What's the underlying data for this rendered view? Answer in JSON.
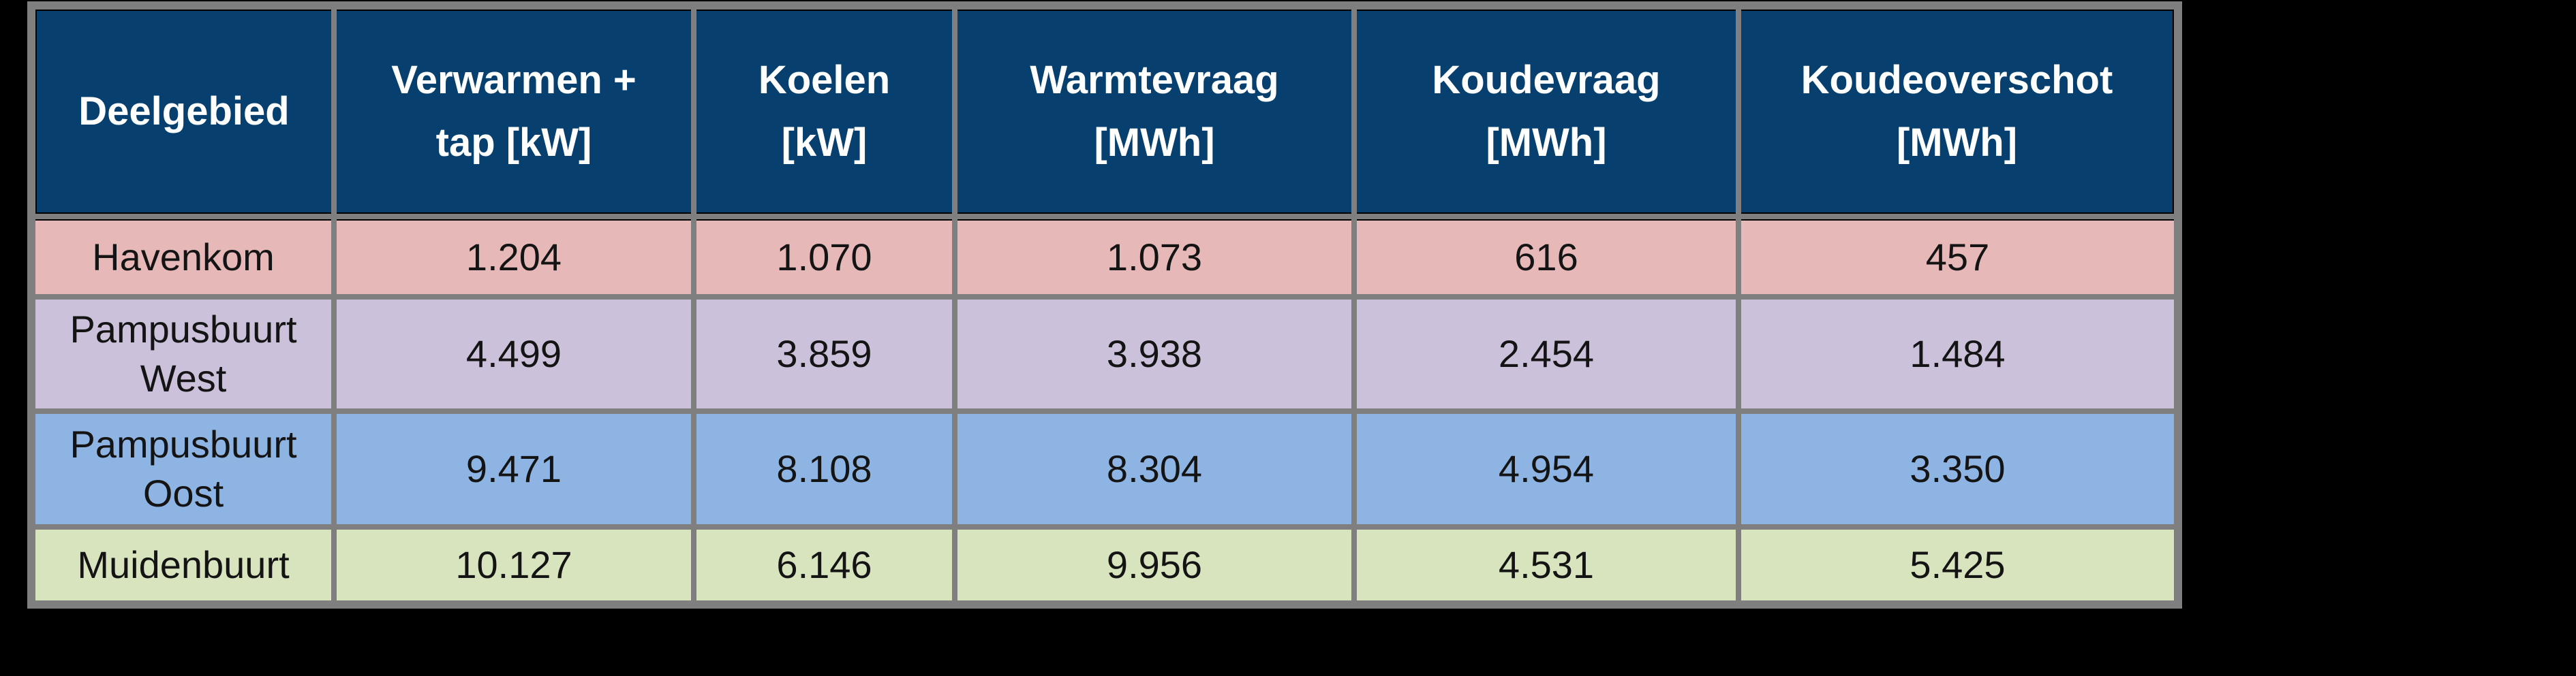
{
  "colors": {
    "canvas_background": "#000000",
    "frame_gray": "#7f7f7f",
    "header_background": "#07406f",
    "header_text": "#ffffff",
    "body_text": "#141414",
    "row_colors": [
      "#e6b9b8",
      "#ccc1da",
      "#8eb4e3",
      "#d7e4bd"
    ]
  },
  "table": {
    "columns": [
      {
        "line1": "Deelgebied",
        "line2": ""
      },
      {
        "line1": "Verwarmen +",
        "line2": "tap [kW]"
      },
      {
        "line1": "Koelen",
        "line2": "[kW]"
      },
      {
        "line1": "Warmtevraag",
        "line2": "[MWh]"
      },
      {
        "line1": "Koudevraag",
        "line2": "[MWh]"
      },
      {
        "line1": "Koudeoverschot",
        "line2": "[MWh]"
      }
    ],
    "rows": [
      {
        "name": "Havenkom",
        "color": "#e6b9b8",
        "values": [
          "1.204",
          "1.070",
          "1.073",
          "616",
          "457"
        ]
      },
      {
        "name": "Pampusbuurt West",
        "color": "#ccc1da",
        "values": [
          "4.499",
          "3.859",
          "3.938",
          "2.454",
          "1.484"
        ]
      },
      {
        "name": "Pampusbuurt Oost",
        "color": "#8eb4e3",
        "values": [
          "9.471",
          "8.108",
          "8.304",
          "4.954",
          "3.350"
        ]
      },
      {
        "name": "Muidenbuurt",
        "color": "#d7e4bd",
        "values": [
          "10.127",
          "6.146",
          "9.956",
          "4.531",
          "5.425"
        ]
      }
    ]
  },
  "chart_data": {
    "type": "table",
    "title": "",
    "columns": [
      "Deelgebied",
      "Verwarmen + tap [kW]",
      "Koelen [kW]",
      "Warmtevraag [MWh]",
      "Koudevraag [MWh]",
      "Koudeoverschot [MWh]"
    ],
    "rows": [
      {
        "Deelgebied": "Havenkom",
        "Verwarmen + tap [kW]": 1204,
        "Koelen [kW]": 1070,
        "Warmtevraag [MWh]": 1073,
        "Koudevraag [MWh]": 616,
        "Koudeoverschot [MWh]": 457
      },
      {
        "Deelgebied": "Pampusbuurt West",
        "Verwarmen + tap [kW]": 4499,
        "Koelen [kW]": 3859,
        "Warmtevraag [MWh]": 3938,
        "Koudevraag [MWh]": 2454,
        "Koudeoverschot [MWh]": 1484
      },
      {
        "Deelgebied": "Pampusbuurt Oost",
        "Verwarmen + tap [kW]": 9471,
        "Koelen [kW]": 8108,
        "Warmtevraag [MWh]": 8304,
        "Koudevraag [MWh]": 4954,
        "Koudeoverschot [MWh]": 3350
      },
      {
        "Deelgebied": "Muidenbuurt",
        "Verwarmen + tap [kW]": 10127,
        "Koelen [kW]": 6146,
        "Warmtevraag [MWh]": 9956,
        "Koudevraag [MWh]": 4531,
        "Koudeoverschot [MWh]": 5425
      }
    ],
    "number_format": "thousands separated with '.' (Dutch notation)",
    "layout": {
      "grid": "gray cell spacing frame",
      "legend": "none",
      "header_style": "dark navy band, white bold text"
    }
  }
}
